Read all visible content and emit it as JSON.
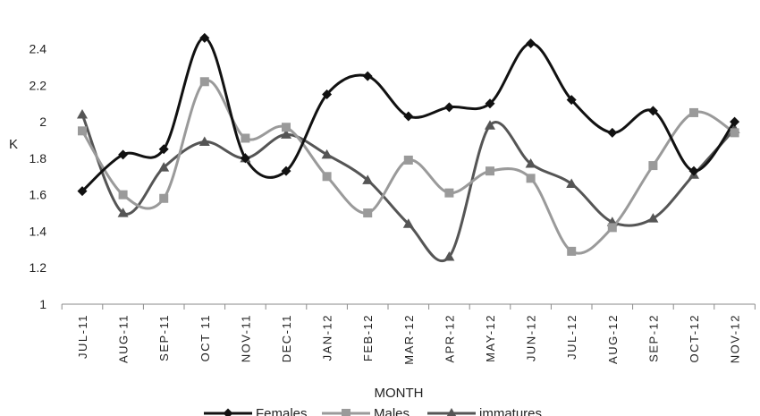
{
  "chart_data": {
    "type": "line",
    "categories": [
      "JUL-11",
      "AUG-11",
      "SEP-11",
      "OCT 11",
      "NOV-11",
      "DEC-11",
      "JAN-12",
      "FEB-12",
      "MAR-12",
      "APR-12",
      "MAY-12",
      "JUN-12",
      "JUL-12",
      "AUG-12",
      "SEP-12",
      "OCT-12",
      "NOV-12"
    ],
    "series": [
      {
        "name": "Females",
        "color": "#111111",
        "marker": "diamond",
        "values": [
          1.62,
          1.82,
          1.85,
          2.46,
          1.8,
          1.73,
          2.15,
          2.25,
          2.03,
          2.08,
          2.1,
          2.43,
          2.12,
          1.94,
          2.06,
          1.73,
          2.0
        ]
      },
      {
        "name": "Males",
        "color": "#9a9a9a",
        "marker": "square",
        "values": [
          1.95,
          1.6,
          1.58,
          2.22,
          1.91,
          1.97,
          1.7,
          1.5,
          1.79,
          1.61,
          1.73,
          1.69,
          1.29,
          1.42,
          1.76,
          2.05,
          1.94
        ]
      },
      {
        "name": "immatures",
        "color": "#555555",
        "marker": "triangle",
        "values": [
          2.04,
          1.5,
          1.75,
          1.89,
          1.8,
          1.93,
          1.82,
          1.68,
          1.44,
          1.26,
          1.98,
          1.77,
          1.66,
          1.45,
          1.47,
          1.71,
          1.96
        ]
      }
    ],
    "yticks": [
      "1",
      "1.2",
      "1.4",
      "1.6",
      "1.8",
      "2",
      "2.2",
      "2.4"
    ],
    "ylim": [
      1,
      2.55
    ],
    "xlabel": "MONTH",
    "ylabel": "K",
    "grid": false,
    "legend": "bottom"
  }
}
